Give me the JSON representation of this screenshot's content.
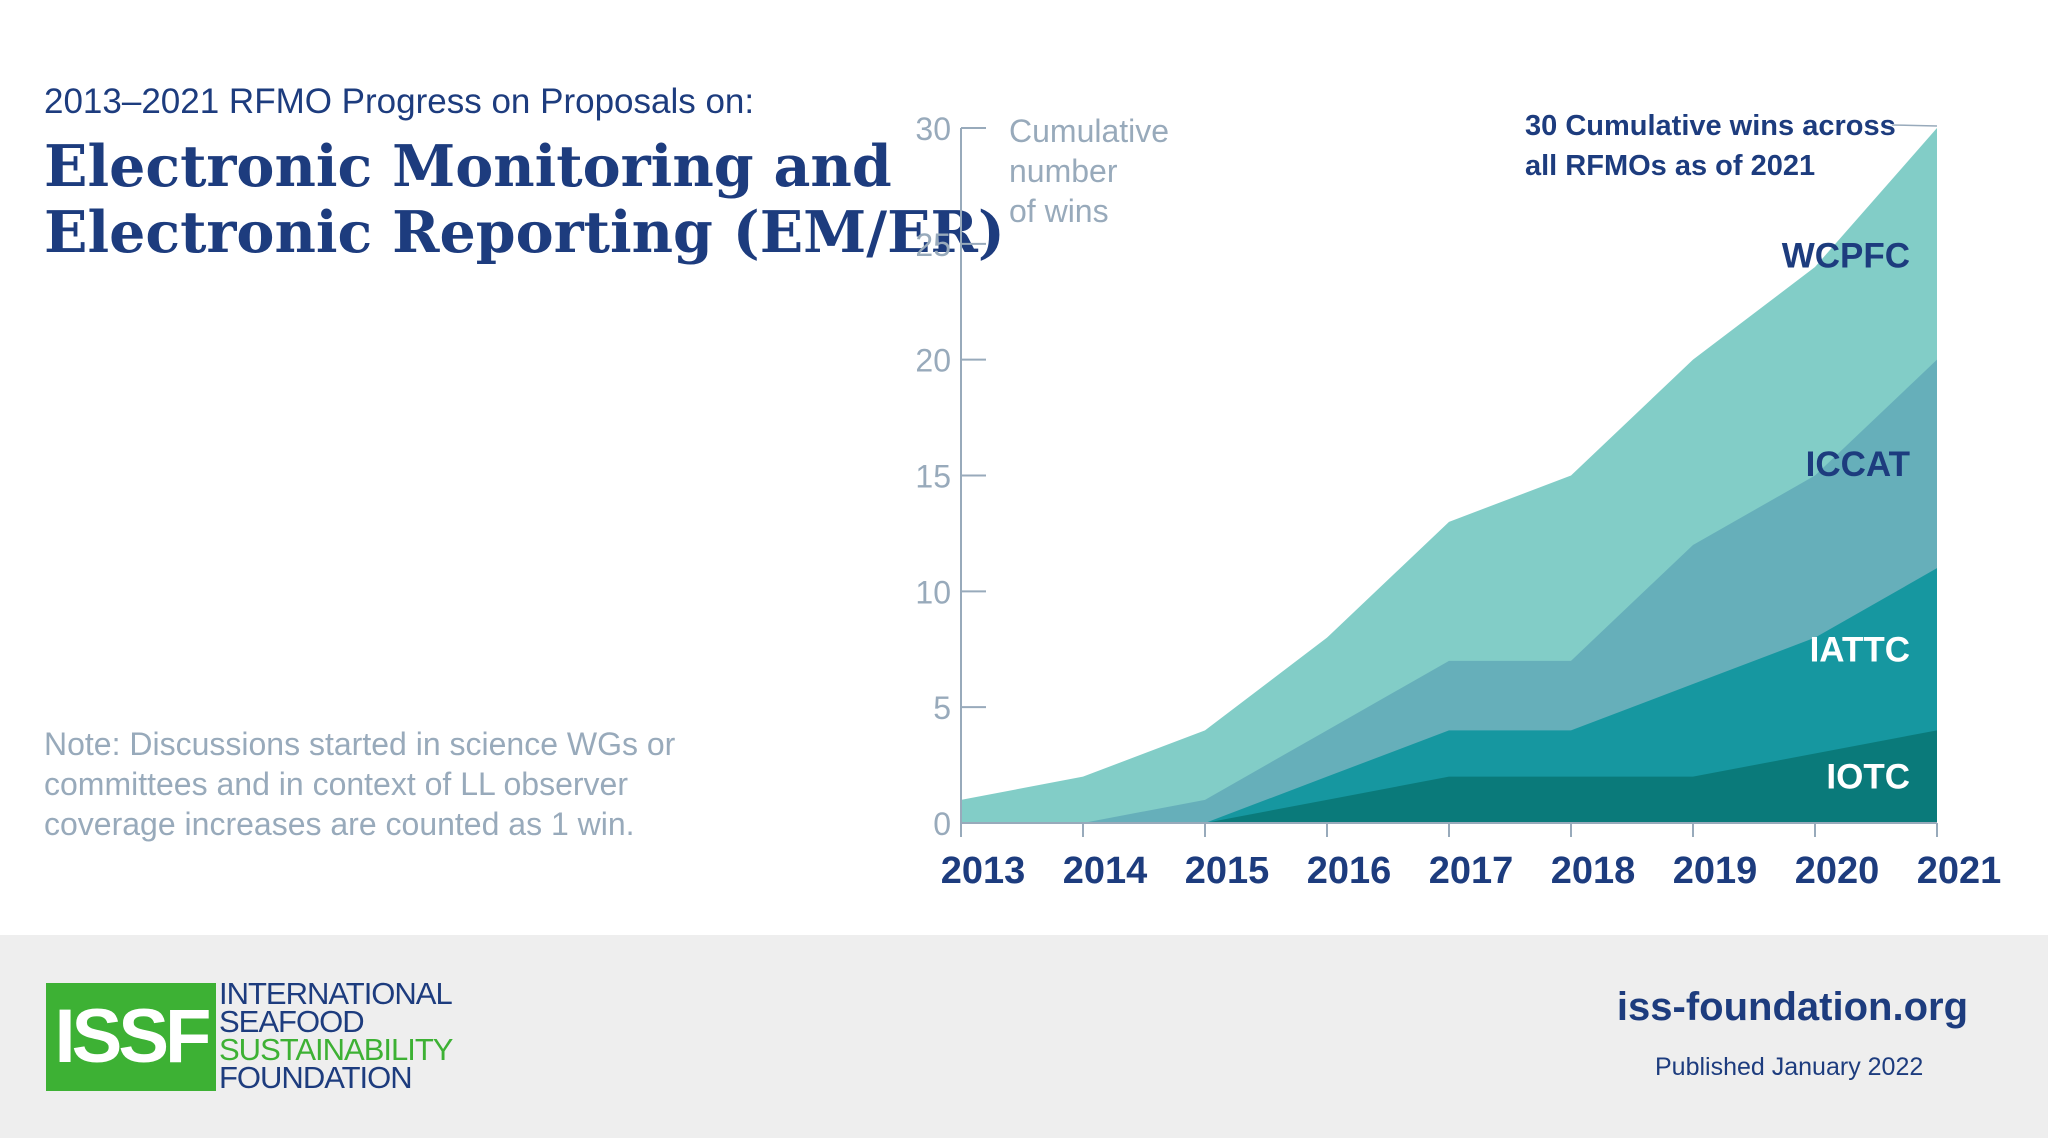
{
  "header": {
    "subtitle": "2013–2021 RFMO Progress on Proposals on:",
    "title_line1": "Electronic Monitoring and",
    "title_line2": "Electronic Reporting (EM/ER)"
  },
  "note": "Note: Discussions started in science WGs or committees and in context of LL observer coverage increases are counted as 1 win.",
  "colors": {
    "WCPFC": "#82cdc7",
    "ICCAT": "#66afba",
    "IATTC": "#1697a0",
    "IOTC": "#0a7a7a",
    "navy": "#1d3c7e",
    "axis": "#98aabb",
    "brand_green": "#3db134"
  },
  "chart_data": {
    "type": "area",
    "stacked": true,
    "x": [
      "2013",
      "2014",
      "2015",
      "2016",
      "2017",
      "2018",
      "2019",
      "2020",
      "2021"
    ],
    "ylim": [
      0,
      30
    ],
    "yticks": [
      0,
      5,
      10,
      15,
      20,
      25,
      30
    ],
    "ylabel_lines": [
      "Cumulative",
      "number",
      "of wins"
    ],
    "series": [
      {
        "name": "IOTC",
        "values": [
          0,
          0,
          0,
          1,
          2,
          2,
          2,
          3,
          4
        ]
      },
      {
        "name": "IATTC",
        "values": [
          0,
          0,
          0,
          1,
          2,
          2,
          4,
          5,
          7
        ]
      },
      {
        "name": "ICCAT",
        "values": [
          0,
          0,
          1,
          2,
          3,
          3,
          6,
          7,
          9
        ]
      },
      {
        "name": "WCPFC",
        "values": [
          1,
          2,
          3,
          4,
          6,
          8,
          8,
          9,
          10
        ]
      }
    ],
    "totals": [
      1,
      2,
      4,
      8,
      13,
      15,
      20,
      24,
      30
    ],
    "annotation_lines": [
      "30 Cumulative wins across",
      "all RFMOs as of 2021"
    ]
  },
  "footer": {
    "logo_abbrev": "ISSF",
    "logo_line1": "INTERNATIONAL",
    "logo_line2": "SEAFOOD",
    "logo_line3": "SUSTAINABILITY",
    "logo_line4": "FOUNDATION",
    "website": "iss-foundation.org",
    "published": "Published January 2022"
  }
}
